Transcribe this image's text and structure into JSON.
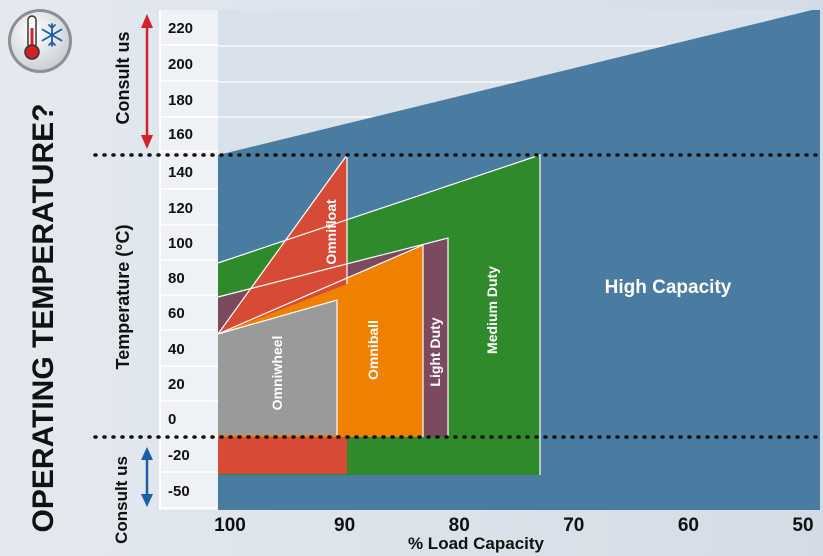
{
  "side_title": "OPERATING TEMPERATURE?",
  "badge": {
    "icon": "thermometer-snowflake-icon"
  },
  "chart_data": {
    "type": "area",
    "title": "",
    "xlabel": "% Load Capacity",
    "ylabel": "Temperature (°C)",
    "x_ticks": [
      100,
      90,
      80,
      70,
      60,
      50
    ],
    "x_tick_labels": [
      "100",
      "90",
      "80",
      "70",
      "60",
      "50"
    ],
    "y_ticks": [
      "-50",
      "-20",
      "0",
      "20",
      "40",
      "60",
      "80",
      "100",
      "120",
      "140",
      "160",
      "180",
      "200",
      "220"
    ],
    "consult_top": "Consult us",
    "consult_bottom": "Consult us",
    "regions": [
      {
        "name": "High Capacity",
        "color": "#4a7ba1"
      },
      {
        "name": "Medium Duty",
        "color": "#2e8a2b"
      },
      {
        "name": "Light Duty",
        "color": "#7b4a5e"
      },
      {
        "name": "Omniball",
        "color": "#ef8000"
      },
      {
        "name": "Omniwheel",
        "color": "#9a9a9a"
      },
      {
        "name": "Omnifloat",
        "color": "#d74b36"
      }
    ]
  }
}
